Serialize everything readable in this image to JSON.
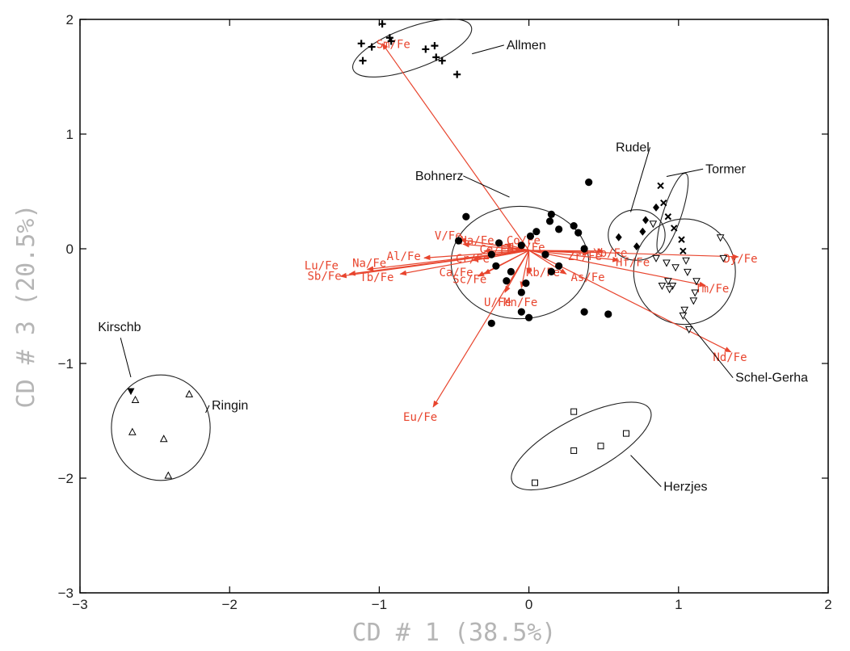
{
  "chart_data": {
    "type": "scatter",
    "xlabel": "CD # 1 (38.5%)",
    "ylabel": "CD # 3 (20.5%)",
    "xlim": [
      -3,
      2
    ],
    "ylim": [
      -3,
      2
    ],
    "x_ticks": [
      "-3",
      "-2",
      "-1",
      "0",
      "1",
      "2"
    ],
    "y_ticks": [
      "-3",
      "-2",
      "-1",
      "0",
      "1",
      "2"
    ],
    "grid": false,
    "colors": {
      "vector": "#e8452e",
      "marker": "#111111",
      "ellipse": "#222222"
    },
    "groups": [
      {
        "name": "Allmen",
        "marker": "plus",
        "ellipse": {
          "cx": -0.78,
          "cy": 1.75,
          "rx": 0.42,
          "ry": 0.18,
          "angle_deg": -20
        },
        "label_at": [
          -0.15,
          1.74
        ],
        "leader_to": [
          -0.38,
          1.7
        ],
        "points": [
          [
            -0.98,
            1.96
          ],
          [
            -1.12,
            1.79
          ],
          [
            -1.05,
            1.76
          ],
          [
            -0.93,
            1.84
          ],
          [
            -0.92,
            1.81
          ],
          [
            -0.63,
            1.77
          ],
          [
            -0.69,
            1.74
          ],
          [
            -0.62,
            1.67
          ],
          [
            -0.58,
            1.64
          ],
          [
            -0.48,
            1.52
          ],
          [
            -1.11,
            1.64
          ]
        ]
      },
      {
        "name": "Bohnerz",
        "marker": "circle",
        "ellipse": {
          "cx": -0.06,
          "cy": -0.12,
          "rx": 0.46,
          "ry": 0.49,
          "angle_deg": 0
        },
        "label_at": [
          -0.76,
          0.6
        ],
        "leader_to": [
          -0.13,
          0.45
        ],
        "points": [
          [
            0.4,
            0.58
          ],
          [
            -0.42,
            0.28
          ],
          [
            0.15,
            0.3
          ],
          [
            0.14,
            0.24
          ],
          [
            0.3,
            0.2
          ],
          [
            0.2,
            0.17
          ],
          [
            0.05,
            0.15
          ],
          [
            0.33,
            0.14
          ],
          [
            0.01,
            0.11
          ],
          [
            -0.47,
            0.07
          ],
          [
            -0.2,
            0.05
          ],
          [
            -0.05,
            0.03
          ],
          [
            0.37,
            0.0
          ],
          [
            -0.25,
            -0.05
          ],
          [
            0.11,
            -0.05
          ],
          [
            -0.22,
            -0.15
          ],
          [
            0.2,
            -0.15
          ],
          [
            -0.12,
            -0.2
          ],
          [
            0.15,
            -0.2
          ],
          [
            -0.15,
            -0.28
          ],
          [
            -0.02,
            -0.3
          ],
          [
            -0.05,
            -0.38
          ],
          [
            0.37,
            -0.55
          ],
          [
            0.53,
            -0.57
          ],
          [
            -0.05,
            -0.55
          ],
          [
            0.0,
            -0.6
          ],
          [
            -0.25,
            -0.65
          ]
        ]
      },
      {
        "name": "Rudel",
        "marker": "diamond",
        "ellipse": {
          "cx": 0.72,
          "cy": 0.12,
          "rx": 0.19,
          "ry": 0.22,
          "angle_deg": 0
        },
        "label_at": [
          0.58,
          0.85
        ],
        "leader_to": [
          0.68,
          0.32
        ],
        "points": [
          [
            0.78,
            0.25
          ],
          [
            0.85,
            0.36
          ],
          [
            0.76,
            0.15
          ],
          [
            0.6,
            0.1
          ],
          [
            0.72,
            0.02
          ]
        ]
      },
      {
        "name": "Tormer",
        "marker": "x",
        "ellipse": {
          "cx": 0.96,
          "cy": 0.31,
          "rx": 0.28,
          "ry": 0.08,
          "angle_deg": -72
        },
        "label_at": [
          1.18,
          0.66
        ],
        "leader_to": [
          0.92,
          0.63
        ],
        "points": [
          [
            0.88,
            0.55
          ],
          [
            0.9,
            0.4
          ],
          [
            0.93,
            0.28
          ],
          [
            0.97,
            0.18
          ],
          [
            1.02,
            0.08
          ],
          [
            1.03,
            -0.02
          ]
        ]
      },
      {
        "name": "Schel-Gerha",
        "marker": "triangle-down",
        "ellipse": {
          "cx": 1.04,
          "cy": -0.2,
          "rx": 0.34,
          "ry": 0.46,
          "angle_deg": 0
        },
        "label_at": [
          1.38,
          -1.16
        ],
        "leader_to": [
          1.04,
          -0.6
        ],
        "points": [
          [
            0.83,
            0.22
          ],
          [
            1.28,
            0.1
          ],
          [
            0.85,
            -0.08
          ],
          [
            0.92,
            -0.12
          ],
          [
            1.05,
            -0.1
          ],
          [
            1.3,
            -0.08
          ],
          [
            0.98,
            -0.16
          ],
          [
            1.06,
            -0.2
          ],
          [
            0.93,
            -0.28
          ],
          [
            1.12,
            -0.28
          ],
          [
            0.89,
            -0.32
          ],
          [
            1.11,
            -0.38
          ],
          [
            1.1,
            -0.45
          ],
          [
            1.04,
            -0.53
          ],
          [
            1.03,
            -0.58
          ],
          [
            1.07,
            -0.7
          ],
          [
            0.96,
            -0.32
          ],
          [
            0.94,
            -0.35
          ]
        ]
      },
      {
        "name": "Herzjes",
        "marker": "square",
        "ellipse": {
          "cx": 0.35,
          "cy": -1.72,
          "rx": 0.52,
          "ry": 0.24,
          "angle_deg": -28
        },
        "label_at": [
          0.9,
          -2.11
        ],
        "leader_to": [
          0.68,
          -1.8
        ],
        "points": [
          [
            0.3,
            -1.42
          ],
          [
            0.65,
            -1.61
          ],
          [
            0.48,
            -1.72
          ],
          [
            0.3,
            -1.76
          ],
          [
            0.04,
            -2.04
          ]
        ]
      },
      {
        "name": "Ringin",
        "marker": "triangle-up",
        "ellipse": {
          "cx": -2.46,
          "cy": -1.56,
          "rx": 0.33,
          "ry": 0.46,
          "angle_deg": 0
        },
        "label_at": [
          -2.12,
          -1.4
        ],
        "leader_to": [
          -2.16,
          -1.43
        ],
        "points": [
          [
            -2.27,
            -1.27
          ],
          [
            -2.63,
            -1.32
          ],
          [
            -2.44,
            -1.66
          ],
          [
            -2.65,
            -1.6
          ],
          [
            -2.41,
            -1.98
          ]
        ]
      },
      {
        "name": "Kirschb",
        "marker": "triangle-down-filled",
        "ellipse": null,
        "label_at": [
          -2.88,
          -0.72
        ],
        "leader_to": [
          -2.66,
          -1.12
        ],
        "points": [
          [
            -2.66,
            -1.24
          ]
        ]
      }
    ],
    "vectors": [
      {
        "label": "Sm/Fe",
        "end": [
          -0.98,
          1.79
        ],
        "label_at": [
          -1.02,
          1.75
        ]
      },
      {
        "label": "Eu/Fe",
        "end": [
          -0.64,
          -1.38
        ],
        "label_at": [
          -0.84,
          -1.5
        ]
      },
      {
        "label": "Nd/Fe",
        "end": [
          1.35,
          -0.9
        ],
        "label_at": [
          1.23,
          -0.98
        ]
      },
      {
        "label": "Dy/Fe",
        "end": [
          1.4,
          -0.07
        ],
        "label_at": [
          1.3,
          -0.12
        ]
      },
      {
        "label": "Tm/Fe",
        "end": [
          1.18,
          -0.32
        ],
        "label_at": [
          1.11,
          -0.38
        ]
      },
      {
        "label": "Hf/Fe",
        "end": [
          0.6,
          -0.1
        ],
        "label_at": [
          0.58,
          -0.15
        ]
      },
      {
        "label": "Yb/Fe",
        "end": [
          0.5,
          -0.02
        ],
        "label_at": [
          0.43,
          -0.07
        ]
      },
      {
        "label": "Zr/Fe",
        "end": [
          0.4,
          -0.04
        ],
        "label_at": [
          0.26,
          -0.1
        ]
      },
      {
        "label": "As/Fe",
        "end": [
          0.25,
          -0.22
        ],
        "label_at": [
          0.28,
          -0.28
        ]
      },
      {
        "label": "V/Fe",
        "end": [
          -0.46,
          0.08
        ],
        "label_at": [
          -0.63,
          0.08
        ]
      },
      {
        "label": "Na/Fe",
        "end": [
          -0.44,
          0.04
        ],
        "label_at": [
          -0.46,
          0.04
        ]
      },
      {
        "label": "Co/Fe",
        "end": [
          -0.16,
          0.04
        ],
        "label_at": [
          -0.15,
          0.04
        ]
      },
      {
        "label": "Ce/Fe",
        "end": [
          -0.3,
          -0.02
        ],
        "label_at": [
          -0.33,
          -0.04
        ]
      },
      {
        "label": "La/Fe",
        "end": [
          -0.1,
          0.0
        ],
        "label_at": [
          -0.12,
          -0.02
        ]
      },
      {
        "label": "Al/Fe",
        "end": [
          -0.7,
          -0.08
        ],
        "label_at": [
          -0.95,
          -0.1
        ]
      },
      {
        "label": "Cr/Fe",
        "end": [
          -0.38,
          -0.1
        ],
        "label_at": [
          -0.49,
          -0.12
        ]
      },
      {
        "label": "Lu/Fe",
        "end": [
          -1.2,
          -0.22
        ],
        "label_at": [
          -1.5,
          -0.18
        ]
      },
      {
        "label": "Na/Fe",
        "end": [
          -1.08,
          -0.18
        ],
        "label_at": [
          -1.18,
          -0.16
        ]
      },
      {
        "label": "Sb/Fe",
        "end": [
          -1.26,
          -0.24
        ],
        "label_at": [
          -1.48,
          -0.27
        ]
      },
      {
        "label": "Tb/Fe",
        "end": [
          -0.86,
          -0.22
        ],
        "label_at": [
          -1.13,
          -0.28
        ]
      },
      {
        "label": "Ca/Fe",
        "end": [
          -0.3,
          -0.22
        ],
        "label_at": [
          -0.6,
          -0.24
        ]
      },
      {
        "label": "Sc/Fe",
        "end": [
          -0.34,
          -0.24
        ],
        "label_at": [
          -0.51,
          -0.3
        ]
      },
      {
        "label": "Rb/Fe",
        "end": [
          0.0,
          -0.22
        ],
        "label_at": [
          -0.02,
          -0.24
        ]
      },
      {
        "label": "U/Fe",
        "end": [
          -0.16,
          -0.38
        ],
        "label_at": [
          -0.3,
          -0.5
        ]
      },
      {
        "label": "Mn/Fe",
        "end": [
          -0.05,
          -0.34
        ],
        "label_at": [
          -0.17,
          -0.5
        ]
      }
    ]
  }
}
